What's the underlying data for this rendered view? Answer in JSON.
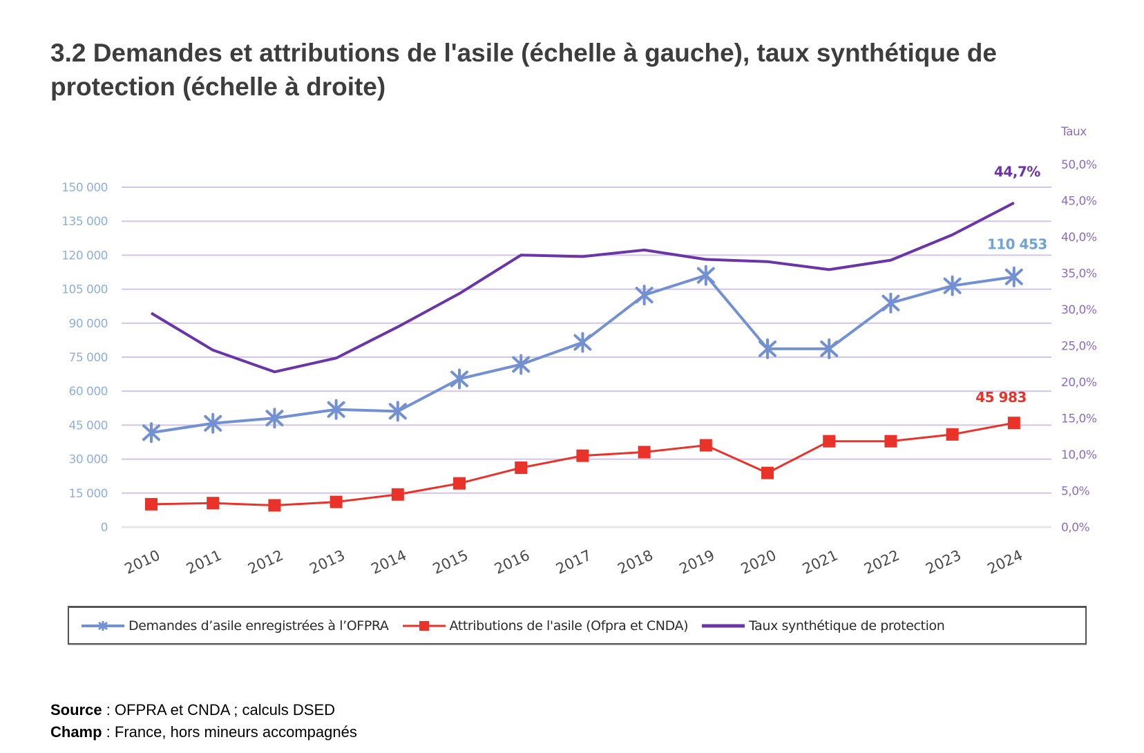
{
  "title": "3.2 Demandes et attributions de l'asile (échelle à gauche), taux synthétique de protection (échelle à droite)",
  "notes": {
    "source_label": "Source",
    "source_text": " : OFPRA et CNDA ; calculs DSED",
    "champ_label": "Champ",
    "champ_text": " : France, hors mineurs accompagnés"
  },
  "chart_data": {
    "type": "line",
    "title": "3.2 Demandes et attributions de l'asile (échelle à gauche), taux synthétique de protection (échelle à droite)",
    "xlabel": "",
    "ylabel_left": "",
    "ylabel_right": "Taux",
    "categories": [
      "2010",
      "2011",
      "2012",
      "2013",
      "2014",
      "2015",
      "2016",
      "2017",
      "2018",
      "2019",
      "2020",
      "2021",
      "2022",
      "2023",
      "2024"
    ],
    "y_left": {
      "range": [
        0,
        150000
      ],
      "ticks": [
        0,
        15000,
        30000,
        45000,
        60000,
        75000,
        90000,
        105000,
        120000,
        135000,
        150000
      ],
      "tick_labels": [
        "0",
        "15 000",
        "30 000",
        "45 000",
        "60 000",
        "75 000",
        "90 000",
        "105 000",
        "120 000",
        "135 000",
        "150 000"
      ]
    },
    "y_right": {
      "range": [
        0,
        50
      ],
      "ticks": [
        0,
        5,
        10,
        15,
        20,
        25,
        30,
        35,
        40,
        45,
        50
      ],
      "tick_labels": [
        "0,0%",
        "5,0%",
        "10,0%",
        "15,0%",
        "20,0%",
        "25,0%",
        "30,0%",
        "35,0%",
        "40,0%",
        "45,0%",
        "50,0%"
      ]
    },
    "grid": true,
    "legend_position": "bottom",
    "series": [
      {
        "name": "Demandes d’asile enregistrées à l’OFPRA",
        "axis": "left",
        "marker": "asterisk",
        "color": "#7290d2",
        "values": [
          41700,
          45800,
          48100,
          51900,
          51100,
          65400,
          71800,
          81500,
          102400,
          111100,
          78700,
          78700,
          98900,
          106500,
          110453
        ],
        "end_label": "110 453",
        "end_label_color": "#6fa3d8"
      },
      {
        "name": "Attributions de l'asile (Ofpra et CNDA)",
        "axis": "left",
        "marker": "square",
        "color": "#e8322a",
        "values": [
          10100,
          10600,
          9600,
          11100,
          14400,
          19300,
          26200,
          31500,
          33100,
          36100,
          23900,
          37900,
          37900,
          40900,
          45983
        ],
        "end_label": "45 983",
        "end_label_color": "#e8322a"
      },
      {
        "name": "Taux synthétique de protection",
        "axis": "right",
        "marker": "none",
        "color": "#6a35a6",
        "values": [
          29.5,
          24.4,
          21.4,
          23.3,
          27.6,
          32.2,
          37.5,
          37.3,
          38.2,
          36.9,
          36.6,
          35.5,
          36.8,
          40.3,
          44.7
        ],
        "end_label": "44,7%",
        "end_label_color": "#6a35a6"
      }
    ],
    "colors": {
      "grid": "#d4c4e8",
      "zero_line": "#e6e6e6",
      "left_axis_text": "#8fb0dc",
      "right_axis_text": "#8f6cc4"
    }
  }
}
